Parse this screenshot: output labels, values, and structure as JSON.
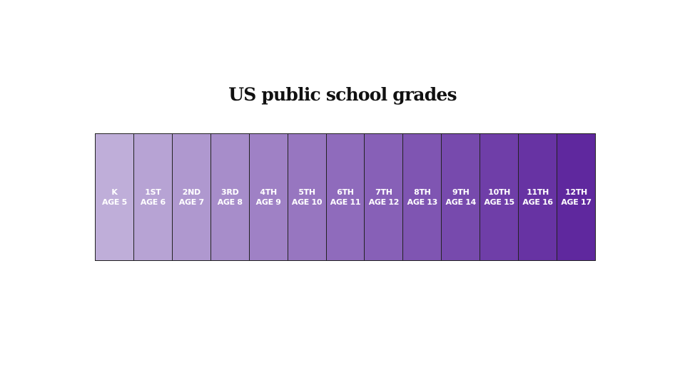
{
  "title": "US public school grades",
  "grades": [
    {
      "grade": "K",
      "age": "AGE 5"
    },
    {
      "grade": "1ST",
      "age": "AGE 6"
    },
    {
      "grade": "2ND",
      "age": "AGE 7"
    },
    {
      "grade": "3RD",
      "age": "AGE 8"
    },
    {
      "grade": "4TH",
      "age": "AGE 9"
    },
    {
      "grade": "5TH",
      "age": "AGE 10"
    },
    {
      "grade": "6TH",
      "age": "AGE 11"
    },
    {
      "grade": "7TH",
      "age": "AGE 12"
    },
    {
      "grade": "8TH",
      "age": "AGE 13"
    },
    {
      "grade": "9TH",
      "age": "AGE 14"
    },
    {
      "grade": "10TH",
      "age": "AGE 15"
    },
    {
      "grade": "11TH",
      "age": "AGE 16"
    },
    {
      "grade": "12TH",
      "age": "AGE 17"
    }
  ]
}
